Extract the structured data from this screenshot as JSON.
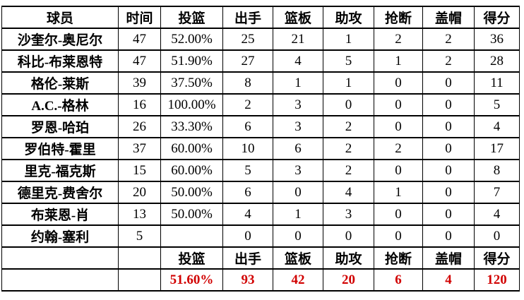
{
  "styles": {
    "total_color": "#d10000",
    "border_color": "#000000",
    "text_color": "#000000",
    "background": "#ffffff"
  },
  "chart_data": {
    "type": "table",
    "title": "",
    "columns": [
      "球员",
      "时间",
      "投篮",
      "出手",
      "篮板",
      "助攻",
      "抢断",
      "盖帽",
      "得分"
    ],
    "rows": [
      [
        "沙奎尔-奥尼尔",
        "47",
        "52.00%",
        "25",
        "21",
        "1",
        "2",
        "2",
        "36"
      ],
      [
        "科比-布莱恩特",
        "47",
        "51.90%",
        "27",
        "4",
        "5",
        "1",
        "2",
        "28"
      ],
      [
        "格伦-莱斯",
        "39",
        "37.50%",
        "8",
        "1",
        "1",
        "0",
        "0",
        "11"
      ],
      [
        "A.C.-格林",
        "16",
        "100.00%",
        "2",
        "3",
        "0",
        "0",
        "0",
        "5"
      ],
      [
        "罗恩-哈珀",
        "26",
        "33.30%",
        "6",
        "3",
        "2",
        "0",
        "0",
        "4"
      ],
      [
        "罗伯特-霍里",
        "37",
        "60.00%",
        "10",
        "6",
        "2",
        "2",
        "0",
        "17"
      ],
      [
        "里克-福克斯",
        "15",
        "60.00%",
        "5",
        "3",
        "2",
        "0",
        "0",
        "8"
      ],
      [
        "德里克-费舍尔",
        "20",
        "50.00%",
        "6",
        "0",
        "4",
        "1",
        "0",
        "7"
      ],
      [
        "布莱恩-肖",
        "13",
        "50.00%",
        "4",
        "1",
        "3",
        "0",
        "0",
        "4"
      ],
      [
        "约翰-塞利",
        "5",
        "",
        "0",
        "0",
        "0",
        "0",
        "0",
        "0"
      ]
    ],
    "summary_label_row": [
      "",
      "",
      "投篮",
      "出手",
      "篮板",
      "助攻",
      "抢断",
      "盖帽",
      "得分"
    ],
    "summary_total_row": [
      "",
      "",
      "51.60%",
      "93",
      "42",
      "20",
      "6",
      "4",
      "120"
    ],
    "layout_hints": {
      "grid": true,
      "totals_row_color": "#d10000",
      "header_bold": true,
      "player_names_bold": true
    }
  }
}
